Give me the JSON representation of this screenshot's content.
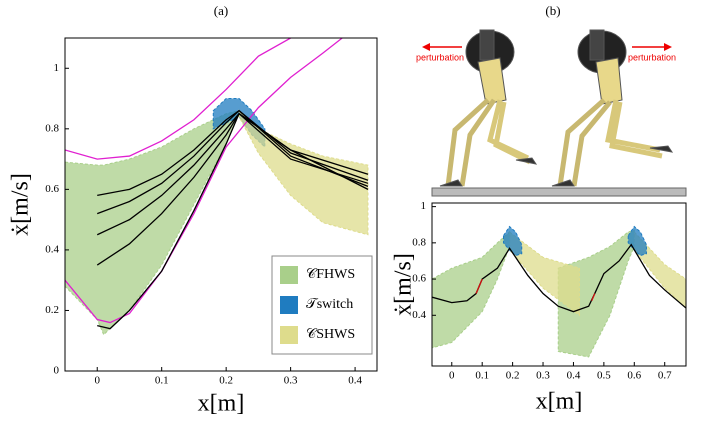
{
  "chart_data": [
    {
      "type": "area",
      "title": "(a)",
      "x_label": "x[m]",
      "y_label": "ẋ[m/s]",
      "xlim": [
        -0.05,
        0.434
      ],
      "ylim": [
        0,
        1.1
      ],
      "xticks": [
        0,
        0.1,
        0.2,
        0.3,
        0.4
      ],
      "yticks": [
        0,
        0.2,
        0.4,
        0.6,
        0.8,
        1
      ],
      "legend": "lower right",
      "series": [
        {
          "name": "𝒞FHWS",
          "color": "#a9cf8a",
          "x": [
            -0.05,
            0,
            0.01,
            0.05,
            0.1,
            0.15,
            0.2,
            0.22
          ],
          "values": [
            0.69,
            0.68,
            0.68,
            0.7,
            0.74,
            0.8,
            0.85,
            0.86
          ],
          "lower": [
            0.28,
            0.17,
            0.12,
            0.2,
            0.35,
            0.55,
            0.75,
            0.85
          ]
        },
        {
          "name": "𝒯switch",
          "color": "#1f7cc0",
          "x": [
            0.18,
            0.2,
            0.22,
            0.24,
            0.26
          ],
          "values": [
            0.86,
            0.9,
            0.9,
            0.86,
            0.8
          ],
          "lower": [
            0.8,
            0.82,
            0.84,
            0.78,
            0.74
          ]
        },
        {
          "name": "𝒞SHWS",
          "color": "#dedc8c",
          "x": [
            0.22,
            0.25,
            0.3,
            0.35,
            0.42
          ],
          "values": [
            0.86,
            0.8,
            0.75,
            0.71,
            0.68
          ],
          "lower": [
            0.84,
            0.72,
            0.58,
            0.49,
            0.45
          ]
        },
        {
          "color": "#e020d0",
          "x": [
            -0.05,
            0,
            0.05,
            0.1,
            0.15,
            0.2,
            0.25,
            0.3
          ],
          "values": [
            0.73,
            0.7,
            0.71,
            0.76,
            0.83,
            0.93,
            1.04,
            1.1
          ]
        },
        {
          "color": "#e020d0",
          "x": [
            -0.05,
            0,
            0.02,
            0.05,
            0.1,
            0.15,
            0.2,
            0.25,
            0.3,
            0.35,
            0.38
          ],
          "values": [
            0.3,
            0.17,
            0.16,
            0.19,
            0.33,
            0.52,
            0.74,
            0.87,
            0.97,
            1.05,
            1.1
          ]
        },
        {
          "color": "#000",
          "x": [
            0,
            0.05,
            0.1,
            0.15,
            0.2,
            0.22,
            0.3,
            0.42
          ],
          "values": [
            0.58,
            0.6,
            0.65,
            0.73,
            0.83,
            0.86,
            0.72,
            0.63
          ]
        },
        {
          "color": "#000",
          "x": [
            0,
            0.05,
            0.1,
            0.15,
            0.2,
            0.22,
            0.3,
            0.42
          ],
          "values": [
            0.52,
            0.56,
            0.62,
            0.71,
            0.82,
            0.86,
            0.71,
            0.61
          ]
        },
        {
          "color": "#000",
          "x": [
            0,
            0.05,
            0.1,
            0.15,
            0.2,
            0.22,
            0.3,
            0.42
          ],
          "values": [
            0.45,
            0.5,
            0.58,
            0.68,
            0.8,
            0.85,
            0.73,
            0.65
          ]
        },
        {
          "color": "#000",
          "x": [
            0,
            0.05,
            0.1,
            0.15,
            0.2,
            0.22,
            0.3,
            0.42
          ],
          "values": [
            0.35,
            0.42,
            0.52,
            0.64,
            0.78,
            0.85,
            0.7,
            0.62
          ]
        },
        {
          "color": "#000",
          "x": [
            0,
            0.02,
            0.05,
            0.1,
            0.15,
            0.2,
            0.22,
            0.3,
            0.42
          ],
          "values": [
            0.15,
            0.14,
            0.2,
            0.33,
            0.53,
            0.75,
            0.85,
            0.73,
            0.6
          ]
        }
      ]
    },
    {
      "type": "area",
      "title": "(b)",
      "x_label": "x[m]",
      "y_label": "ẋ[m/s]",
      "annotations": [
        "perturbation",
        "perturbation"
      ],
      "xlim": [
        -0.065,
        0.77
      ],
      "ylim": [
        0.12,
        1.02
      ],
      "xticks": [
        0,
        0.1,
        0.2,
        0.3,
        0.4,
        0.5,
        0.6,
        0.7
      ],
      "yticks": [
        0.4,
        0.6,
        0.8,
        1
      ],
      "series": [
        {
          "color": "#a9cf8a",
          "x": [
            -0.065,
            0,
            0.1,
            0.15,
            0.19
          ],
          "values": [
            0.6,
            0.66,
            0.72,
            0.8,
            0.86
          ],
          "lower": [
            0.22,
            0.25,
            0.42,
            0.6,
            0.78
          ]
        },
        {
          "color": "#a9cf8a",
          "x": [
            0.35,
            0.45,
            0.52,
            0.58,
            0.6
          ],
          "values": [
            0.66,
            0.72,
            0.78,
            0.86,
            0.87
          ],
          "lower": [
            0.2,
            0.17,
            0.4,
            0.7,
            0.78
          ]
        },
        {
          "color": "#dedc8c",
          "x": [
            0.19,
            0.3,
            0.42
          ],
          "values": [
            0.86,
            0.72,
            0.66
          ],
          "lower": [
            0.76,
            0.55,
            0.4
          ]
        },
        {
          "color": "#dedc8c",
          "x": [
            0.6,
            0.7,
            0.77
          ],
          "values": [
            0.86,
            0.68,
            0.6
          ],
          "lower": [
            0.76,
            0.55,
            0.44
          ]
        },
        {
          "color": "#1f7cc0",
          "x": [
            0.17,
            0.19,
            0.21,
            0.23
          ],
          "values": [
            0.84,
            0.89,
            0.86,
            0.79
          ],
          "lower": [
            0.8,
            0.76,
            0.73,
            0.74
          ]
        },
        {
          "color": "#1f7cc0",
          "x": [
            0.58,
            0.6,
            0.62,
            0.64
          ],
          "values": [
            0.84,
            0.89,
            0.86,
            0.79
          ],
          "lower": [
            0.8,
            0.76,
            0.73,
            0.74
          ]
        },
        {
          "color": "#000",
          "x": [
            -0.065,
            0,
            0.05,
            0.08,
            0.1,
            0.15,
            0.19,
            0.25,
            0.3,
            0.35,
            0.4,
            0.45,
            0.47,
            0.5,
            0.55,
            0.59,
            0.65,
            0.7,
            0.77
          ],
          "values": [
            0.5,
            0.47,
            0.48,
            0.52,
            0.6,
            0.66,
            0.77,
            0.62,
            0.52,
            0.45,
            0.42,
            0.45,
            0.52,
            0.63,
            0.7,
            0.79,
            0.62,
            0.54,
            0.44
          ]
        },
        {
          "color": "#d01010",
          "x": [
            0.08,
            0.09,
            0.1,
            0.45,
            0.46,
            0.47
          ],
          "values": [
            0.52,
            0.56,
            0.6,
            null,
            0.48,
            0.52
          ]
        }
      ]
    }
  ]
}
